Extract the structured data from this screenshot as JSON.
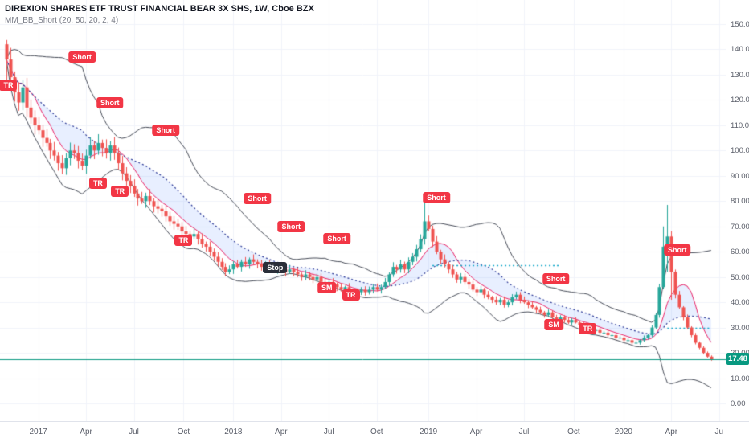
{
  "legend": {
    "symbol_title": "DIREXION SHARES ETF TRUST FINANCIAL BEAR 3X SHS, 1W, Cboe BZX",
    "indicator_title": "MM_BB_Short (20, 50, 20, 2, 4)"
  },
  "chart_data": {
    "type": "candlestick",
    "title": "DIREXION SHARES ETF TRUST FINANCIAL BEAR 3X SHS, 1W, Cboe BZX",
    "indicator": "MM_BB_Short (20, 50, 20, 2, 4)",
    "timeframe": "1W",
    "ylim": [
      0,
      150
    ],
    "price_ticks": [
      "150.00",
      "140.00",
      "130.00",
      "120.00",
      "110.00",
      "100.00",
      "90.00",
      "80.00",
      "70.00",
      "60.00",
      "50.00",
      "40.00",
      "30.00",
      "20.00",
      "10.00",
      "0.00"
    ],
    "time_ticks": [
      {
        "label": "2017",
        "week": 8
      },
      {
        "label": "Apr",
        "week": 20
      },
      {
        "label": "Jul",
        "week": 32
      },
      {
        "label": "Oct",
        "week": 44.5
      },
      {
        "label": "2018",
        "week": 57
      },
      {
        "label": "Apr",
        "week": 69
      },
      {
        "label": "Jul",
        "week": 81
      },
      {
        "label": "Oct",
        "week": 93
      },
      {
        "label": "2019",
        "week": 106
      },
      {
        "label": "Apr",
        "week": 118
      },
      {
        "label": "Jul",
        "week": 130
      },
      {
        "label": "Oct",
        "week": 142.5
      },
      {
        "label": "2020",
        "week": 155
      },
      {
        "label": "Apr",
        "week": 167
      },
      {
        "label": "Ju",
        "week": 179
      }
    ],
    "first_open": 142,
    "closes": [
      136,
      129,
      123,
      119,
      125,
      117,
      113,
      110,
      108,
      105,
      103,
      100,
      98,
      95,
      93,
      97,
      100,
      99,
      96,
      94,
      98,
      102,
      100,
      103,
      101,
      99,
      102,
      99,
      95,
      91,
      88,
      86,
      83,
      81,
      80,
      82,
      80,
      78,
      77,
      76,
      74,
      72,
      71,
      70,
      68,
      67,
      66,
      67,
      65,
      63,
      62,
      60,
      58,
      56,
      54,
      52,
      53,
      55,
      54,
      56,
      55,
      57,
      56,
      55,
      54,
      55,
      54,
      53,
      54,
      53,
      52,
      53,
      52,
      51,
      50,
      51,
      50,
      49,
      50,
      48,
      47,
      48,
      47,
      46,
      45,
      46,
      44,
      43,
      44,
      45,
      44,
      45,
      46,
      45,
      46,
      48,
      51,
      54,
      53,
      55,
      53,
      56,
      58,
      61,
      65,
      72,
      69,
      64,
      60,
      57,
      55,
      53,
      51,
      49,
      50,
      48,
      47,
      45,
      44,
      45,
      43,
      42,
      41,
      40,
      41,
      39,
      40,
      42,
      43,
      41,
      40,
      39,
      38,
      37,
      36,
      35,
      36,
      34,
      33,
      34,
      33,
      32,
      33,
      32,
      31,
      30,
      30,
      29,
      29,
      28,
      28,
      27,
      27,
      26,
      26,
      25,
      25,
      24,
      24,
      25,
      26,
      27,
      30,
      35,
      46,
      62,
      66,
      52,
      43,
      38,
      34,
      30,
      27,
      24,
      22,
      20,
      18.5,
      17.48
    ],
    "wick_high_overrides": {
      "105": 80,
      "165": 70,
      "166": 78.5
    },
    "wick_low_overrides": {
      "0": 127,
      "166": 52,
      "167": 41
    },
    "last_price": 17.48,
    "last_price_label": "17.48",
    "dotted_levels": [
      {
        "price": 54.6,
        "from_week": 107,
        "to_week": 139
      },
      {
        "price": 30,
        "from_week": 166,
        "to_week": 177
      }
    ],
    "annotations": [
      {
        "text": "TR",
        "week": 0.5,
        "price": 126,
        "variant": "tr"
      },
      {
        "text": "Short",
        "week": 19,
        "price": 137,
        "variant": "short"
      },
      {
        "text": "Short",
        "week": 26,
        "price": 119,
        "variant": "short"
      },
      {
        "text": "Short",
        "week": 40,
        "price": 108,
        "variant": "short"
      },
      {
        "text": "TR",
        "week": 23,
        "price": 87,
        "variant": "tr"
      },
      {
        "text": "TR",
        "week": 28.5,
        "price": 84,
        "variant": "tr"
      },
      {
        "text": "TR",
        "week": 44.5,
        "price": 64.5,
        "variant": "tr"
      },
      {
        "text": "Short",
        "week": 63,
        "price": 81,
        "variant": "short"
      },
      {
        "text": "Short",
        "week": 71.5,
        "price": 70,
        "variant": "short"
      },
      {
        "text": "Short",
        "week": 83,
        "price": 65,
        "variant": "short"
      },
      {
        "text": "Stop",
        "week": 67.5,
        "price": 53.7,
        "variant": "stop"
      },
      {
        "text": "SM",
        "week": 80.5,
        "price": 45.7,
        "variant": "sm"
      },
      {
        "text": "TR",
        "week": 86.5,
        "price": 43,
        "variant": "tr"
      },
      {
        "text": "Short",
        "week": 108,
        "price": 81.5,
        "variant": "short"
      },
      {
        "text": "Short",
        "week": 138,
        "price": 49.2,
        "variant": "short"
      },
      {
        "text": "SM",
        "week": 137.5,
        "price": 31.1,
        "variant": "sm"
      },
      {
        "text": "TR",
        "week": 146,
        "price": 29.5,
        "variant": "tr"
      },
      {
        "text": "Short",
        "week": 168.5,
        "price": 60.7,
        "variant": "short"
      }
    ]
  },
  "colors": {
    "up": "#26a69a",
    "down": "#ef5350",
    "bb": "#454a56",
    "ma_fast": "#e91e63",
    "ma_slow": "#283593",
    "cloud": "rgba(90,140,255,0.14)",
    "level_dotted": "#0fa6c8",
    "last_price": "#089981",
    "label_red": "#f23645",
    "label_dark": "#2a2e39",
    "grid": "#f0f3fa",
    "axis_text": "#5a5e69",
    "axis_border": "#e0e3eb"
  }
}
